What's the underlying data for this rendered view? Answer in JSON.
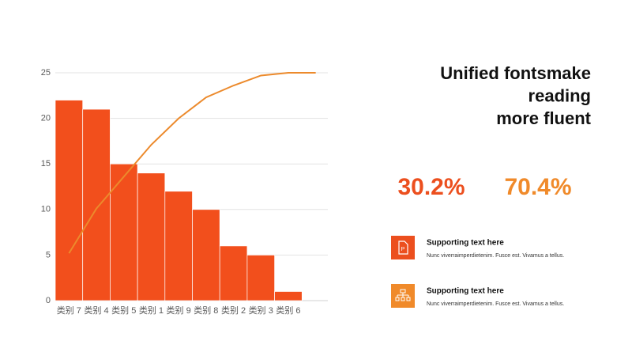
{
  "chart_data": {
    "type": "bar",
    "categories": [
      "类别 7",
      "类别 4",
      "类别 5",
      "类别 1",
      "类别 9",
      "类别 8",
      "类别 2",
      "类别 3",
      "类别 6",
      null
    ],
    "series": [
      {
        "type": "bar",
        "color": "#f24f1c",
        "values": [
          22,
          21,
          15,
          14,
          12,
          10,
          6,
          5,
          1,
          null
        ]
      },
      {
        "type": "line",
        "color": "#ec8a2c",
        "values": [
          5.2,
          10.1,
          13.6,
          17.1,
          20,
          22.3,
          23.6,
          24.7,
          25,
          25
        ]
      }
    ],
    "ylim": [
      0,
      25
    ],
    "yticks": [
      0,
      5,
      10,
      15,
      20,
      25
    ],
    "grid": true
  },
  "heading": [
    "Unified fontsmake",
    "reading",
    "more fluent"
  ],
  "stats": [
    {
      "text": "30.2%",
      "color": "#ec4f1e"
    },
    {
      "text": "70.4%",
      "color": "#f08a2a"
    }
  ],
  "items": [
    {
      "title": "Supporting text here",
      "text": "Nunc viverraimperdietenim. Fusce est. Vivamus a tellus.",
      "color": "#ec4f1e"
    },
    {
      "title": "Supporting text here",
      "text": "Nunc viverraimperdietenim. Fusce est. Vivamus a tellus.",
      "color": "#f08a2a"
    }
  ]
}
